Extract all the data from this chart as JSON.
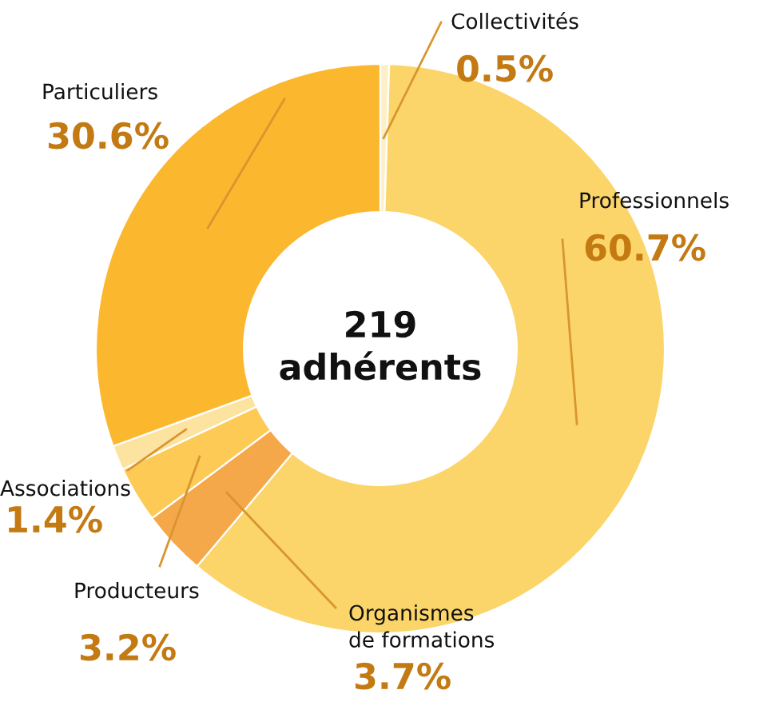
{
  "chart_data": {
    "type": "donut",
    "categories": [
      "Collectivités",
      "Professionnels",
      "Organismes\nde formations",
      "Producteurs",
      "Associations",
      "Particuliers"
    ],
    "values": [
      0.5,
      60.7,
      3.7,
      3.2,
      1.4,
      30.6
    ],
    "value_labels": [
      "0.5%",
      "60.7%",
      "3.7%",
      "3.2%",
      "1.4%",
      "30.6%"
    ],
    "colors": [
      "#fdf0c8",
      "#fbd569",
      "#f5a84a",
      "#fcca55",
      "#fde3a0",
      "#fbb82f"
    ],
    "annotations": [
      "219\nadhérents"
    ]
  }
}
